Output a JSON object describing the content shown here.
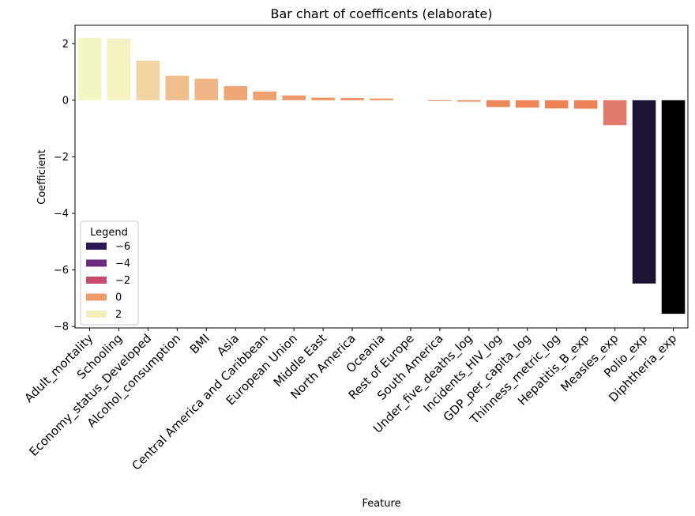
{
  "chart_data": {
    "type": "bar",
    "title": "Bar chart of coefficents (elaborate)",
    "xlabel": "Feature",
    "ylabel": "Coefficient",
    "ylim": [
      -8.05,
      2.65
    ],
    "yticks": [
      2,
      0,
      -2,
      -4,
      -6,
      -8
    ],
    "ytick_labels": [
      "2",
      "0",
      "−2",
      "−4",
      "−6",
      "−8"
    ],
    "grid": false,
    "categories": [
      "Adult_mortality",
      "Schooling",
      "Economy_status_Developed",
      "Alcohol_consumption",
      "BMI",
      "Asia",
      "Central America and Caribbean",
      "European Union",
      "Middle East",
      "North America",
      "Oceania",
      "Rest of Europe",
      "South America",
      "Under_five_deaths_log",
      "Incidents_HIV_log",
      "GDP_per_capita_log",
      "Thinness_metric_log",
      "Hepatitis_B_exp",
      "Measles_exp",
      "Polio_exp",
      "Diphtheria_exp"
    ],
    "values": [
      2.2,
      2.18,
      1.4,
      0.87,
      0.76,
      0.5,
      0.31,
      0.17,
      0.09,
      0.08,
      0.06,
      0.0,
      -0.03,
      -0.05,
      -0.24,
      -0.26,
      -0.29,
      -0.3,
      -0.88,
      -6.48,
      -7.55
    ],
    "colors": [
      "#f4f6c4",
      "#f4f2c0",
      "#f2d3a2",
      "#f1bd8a",
      "#f1b685",
      "#f0a676",
      "#efa06f",
      "#ef9869",
      "#ef9464",
      "#ef9364",
      "#ef9262",
      "#ef905f",
      "#ee8f5e",
      "#ee8d5c",
      "#ed8658",
      "#ed8557",
      "#ec8456",
      "#ec8355",
      "#e37a6e",
      "#1c1434",
      "#000000"
    ],
    "legend": {
      "title": "Legend",
      "placement": "lower-left",
      "entries": [
        {
          "label": "−6",
          "color": "#2a1858"
        },
        {
          "label": "−4",
          "color": "#6b2a7c"
        },
        {
          "label": "−2",
          "color": "#c84a6f"
        },
        {
          "label": "0",
          "color": "#f09a6c"
        },
        {
          "label": "2",
          "color": "#f4efbd"
        }
      ]
    }
  }
}
